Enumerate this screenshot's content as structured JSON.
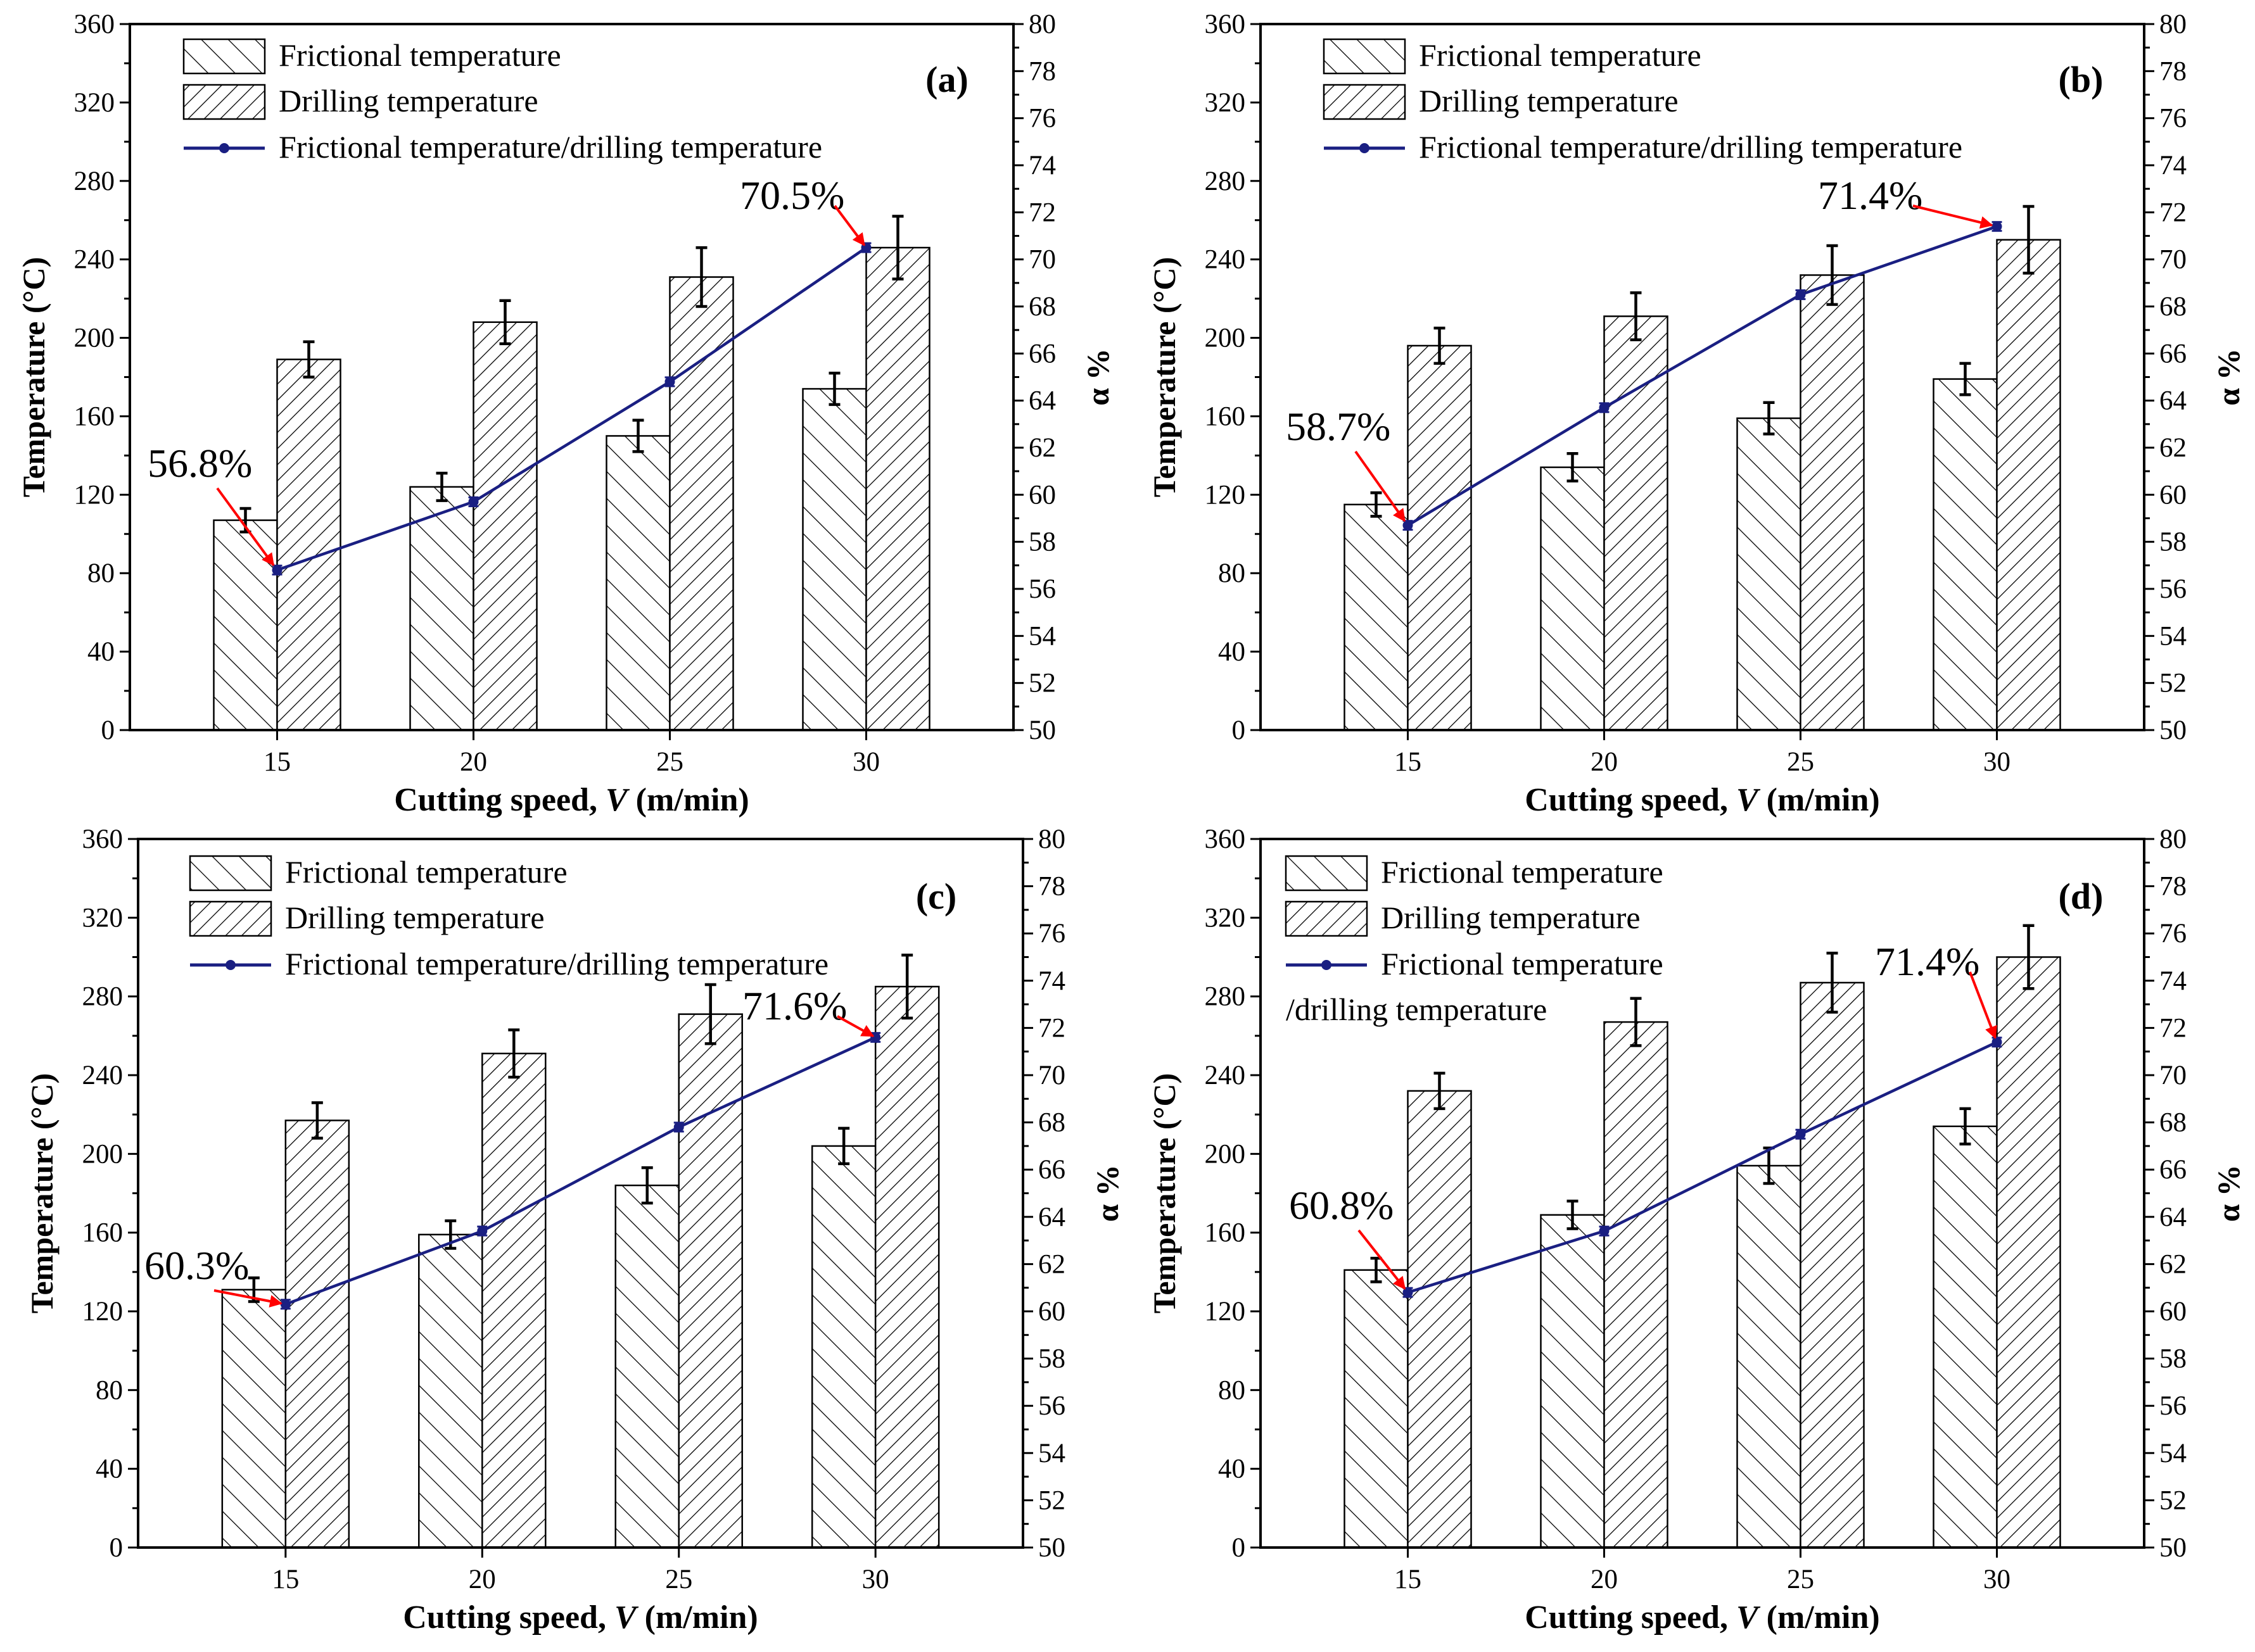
{
  "figure": {
    "colors": {
      "line": "#1a1f82",
      "arrow": "#ff0000",
      "bar_edge": "#000000",
      "hatch": "#000000",
      "background": "#ffffff"
    }
  },
  "chart_data": [
    {
      "type": "bar+line",
      "panel_label": "(a)",
      "categories": [
        "15",
        "20",
        "25",
        "30"
      ],
      "xlabel_prefix": "Cutting speed, ",
      "xlabel_var": "V",
      "xlabel_suffix": " (m/min)",
      "ylabel_left": "Temperature (°C)",
      "ylabel_right": "α %",
      "ylim_left": [
        0,
        360
      ],
      "yticks_left": [
        "0",
        "40",
        "80",
        "120",
        "160",
        "200",
        "240",
        "280",
        "320",
        "360"
      ],
      "ylim_right": [
        50,
        80
      ],
      "yticks_right": [
        "50",
        "52",
        "54",
        "56",
        "58",
        "60",
        "62",
        "64",
        "66",
        "68",
        "70",
        "72",
        "74",
        "76",
        "78",
        "80"
      ],
      "legend": [
        "Frictional temperature",
        "Drilling temperature",
        "Frictional temperature/drilling temperature"
      ],
      "series": [
        {
          "name": "Frictional temperature",
          "axis": "left",
          "values": [
            107,
            124,
            150,
            174
          ],
          "errors": [
            6,
            7,
            8,
            8
          ]
        },
        {
          "name": "Drilling temperature",
          "axis": "left",
          "values": [
            189,
            208,
            231,
            246
          ],
          "errors": [
            9,
            11,
            15,
            16
          ]
        },
        {
          "name": "Frictional temperature/drilling temperature",
          "axis": "right",
          "values": [
            56.8,
            59.7,
            64.8,
            70.5
          ]
        }
      ],
      "annotations": [
        "56.8%",
        "70.5%"
      ]
    },
    {
      "type": "bar+line",
      "panel_label": "(b)",
      "categories": [
        "15",
        "20",
        "25",
        "30"
      ],
      "xlabel_prefix": "Cutting speed, ",
      "xlabel_var": "V",
      "xlabel_suffix": " (m/min)",
      "ylabel_left": "Temperature (°C)",
      "ylabel_right": "α %",
      "ylim_left": [
        0,
        360
      ],
      "yticks_left": [
        "0",
        "40",
        "80",
        "120",
        "160",
        "200",
        "240",
        "280",
        "320",
        "360"
      ],
      "ylim_right": [
        50,
        80
      ],
      "yticks_right": [
        "50",
        "52",
        "54",
        "56",
        "58",
        "60",
        "62",
        "64",
        "66",
        "68",
        "70",
        "72",
        "74",
        "76",
        "78",
        "80"
      ],
      "legend": [
        "Frictional temperature",
        "Drilling temperature",
        "Frictional temperature/drilling temperature"
      ],
      "series": [
        {
          "name": "Frictional temperature",
          "axis": "left",
          "values": [
            115,
            134,
            159,
            179
          ],
          "errors": [
            6,
            7,
            8,
            8
          ]
        },
        {
          "name": "Drilling temperature",
          "axis": "left",
          "values": [
            196,
            211,
            232,
            250
          ],
          "errors": [
            9,
            12,
            15,
            17
          ]
        },
        {
          "name": "Frictional temperature/drilling temperature",
          "axis": "right",
          "values": [
            58.7,
            63.7,
            68.5,
            71.4
          ]
        }
      ],
      "annotations": [
        "58.7%",
        "71.4%"
      ]
    },
    {
      "type": "bar+line",
      "panel_label": "(c)",
      "categories": [
        "15",
        "20",
        "25",
        "30"
      ],
      "xlabel_prefix": "Cutting speed, ",
      "xlabel_var": "V",
      "xlabel_suffix": " (m/min)",
      "ylabel_left": "Temperature (°C)",
      "ylabel_right": "α %",
      "ylim_left": [
        0,
        360
      ],
      "yticks_left": [
        "0",
        "40",
        "80",
        "120",
        "160",
        "200",
        "240",
        "280",
        "320",
        "360"
      ],
      "ylim_right": [
        50,
        80
      ],
      "yticks_right": [
        "50",
        "52",
        "54",
        "56",
        "58",
        "60",
        "62",
        "64",
        "66",
        "68",
        "70",
        "72",
        "74",
        "76",
        "78",
        "80"
      ],
      "legend": [
        "Frictional temperature",
        "Drilling temperature",
        "Frictional temperature/drilling temperature"
      ],
      "series": [
        {
          "name": "Frictional temperature",
          "axis": "left",
          "values": [
            131,
            159,
            184,
            204
          ],
          "errors": [
            6,
            7,
            9,
            9
          ]
        },
        {
          "name": "Drilling temperature",
          "axis": "left",
          "values": [
            217,
            251,
            271,
            285
          ],
          "errors": [
            9,
            12,
            15,
            16
          ]
        },
        {
          "name": "Frictional temperature/drilling temperature",
          "axis": "right",
          "values": [
            60.3,
            63.4,
            67.8,
            71.6
          ]
        }
      ],
      "annotations": [
        "60.3%",
        "71.6%"
      ]
    },
    {
      "type": "bar+line",
      "panel_label": "(d)",
      "categories": [
        "15",
        "20",
        "25",
        "30"
      ],
      "xlabel_prefix": "Cutting speed, ",
      "xlabel_var": "V",
      "xlabel_suffix": " (m/min)",
      "ylabel_left": "Temperature (°C)",
      "ylabel_right": "α %",
      "ylim_left": [
        0,
        360
      ],
      "yticks_left": [
        "0",
        "40",
        "80",
        "120",
        "160",
        "200",
        "240",
        "280",
        "320",
        "360"
      ],
      "ylim_right": [
        50,
        80
      ],
      "yticks_right": [
        "50",
        "52",
        "54",
        "56",
        "58",
        "60",
        "62",
        "64",
        "66",
        "68",
        "70",
        "72",
        "74",
        "76",
        "78",
        "80"
      ],
      "legend": [
        "Frictional temperature",
        "Drilling temperature",
        "Frictional temperature",
        "/drilling temperature"
      ],
      "series": [
        {
          "name": "Frictional temperature",
          "axis": "left",
          "values": [
            141,
            169,
            194,
            214
          ],
          "errors": [
            6,
            7,
            9,
            9
          ]
        },
        {
          "name": "Drilling temperature",
          "axis": "left",
          "values": [
            232,
            267,
            287,
            300
          ],
          "errors": [
            9,
            12,
            15,
            16
          ]
        },
        {
          "name": "Frictional temperature/drilling temperature",
          "axis": "right",
          "values": [
            60.8,
            63.4,
            67.5,
            71.4
          ]
        }
      ],
      "annotations": [
        "60.8%",
        "71.4%"
      ]
    }
  ]
}
